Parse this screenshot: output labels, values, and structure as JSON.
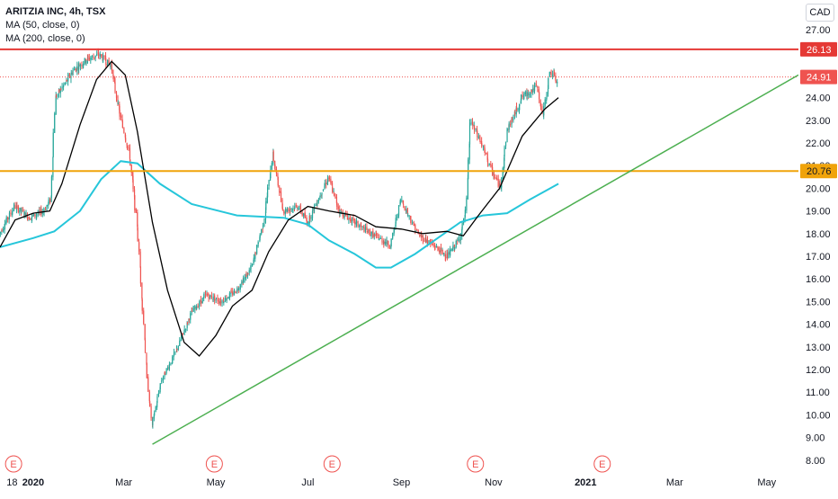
{
  "legend": {
    "title": "ARITZIA INC, 4h, TSX",
    "indicators": [
      "MA (50, close, 0)",
      "MA (200, close, 0)"
    ]
  },
  "currency_label": "CAD",
  "colors": {
    "up": "#26a69a",
    "down": "#ef5350",
    "ma50": "#000000",
    "ma200": "#26c6da",
    "resistance": "#e53935",
    "support": "#f0a30a",
    "trendline": "#4caf50",
    "axis_text": "#131722"
  },
  "chart_data": {
    "type": "candlestick",
    "symbol": "ARITZIA INC",
    "interval": "4h",
    "exchange": "TSX",
    "currency": "CAD",
    "y_ticks": [
      "27.00",
      "26.00",
      "25.00",
      "24.00",
      "23.00",
      "22.00",
      "21.00",
      "20.00",
      "19.00",
      "18.00",
      "17.00",
      "16.00",
      "15.00",
      "14.00",
      "13.00",
      "12.00",
      "11.00",
      "10.00",
      "9.00",
      "8.00"
    ],
    "ylim": [
      7.6,
      27.9
    ],
    "x_ticks": [
      {
        "label": "18",
        "date": "2019-12-18"
      },
      {
        "label": "2020",
        "date": "2020-01-01",
        "bold": true
      },
      {
        "label": "Mar",
        "date": "2020-03-01"
      },
      {
        "label": "May",
        "date": "2020-05-01"
      },
      {
        "label": "Jul",
        "date": "2020-07-01"
      },
      {
        "label": "Sep",
        "date": "2020-09-01"
      },
      {
        "label": "Nov",
        "date": "2020-11-01"
      },
      {
        "label": "2021",
        "date": "2021-01-01",
        "bold": true
      },
      {
        "label": "Mar",
        "date": "2021-03-01"
      },
      {
        "label": "May",
        "date": "2021-05-01"
      }
    ],
    "xlim": [
      "2019-12-10",
      "2021-05-22"
    ],
    "price_path": [
      [
        "2019-12-10",
        18.0
      ],
      [
        "2019-12-20",
        19.2
      ],
      [
        "2019-12-30",
        18.7
      ],
      [
        "2020-01-08",
        19.0
      ],
      [
        "2020-01-13",
        19.5
      ],
      [
        "2020-01-16",
        24.0
      ],
      [
        "2020-01-28",
        25.2
      ],
      [
        "2020-02-06",
        25.7
      ],
      [
        "2020-02-14",
        25.9
      ],
      [
        "2020-02-22",
        25.4
      ],
      [
        "2020-02-27",
        23.5
      ],
      [
        "2020-03-05",
        21.5
      ],
      [
        "2020-03-10",
        18.5
      ],
      [
        "2020-03-13",
        15.5
      ],
      [
        "2020-03-17",
        11.5
      ],
      [
        "2020-03-20",
        9.5
      ],
      [
        "2020-03-26",
        11.5
      ],
      [
        "2020-04-03",
        12.5
      ],
      [
        "2020-04-15",
        14.5
      ],
      [
        "2020-04-25",
        15.3
      ],
      [
        "2020-05-05",
        15.0
      ],
      [
        "2020-05-15",
        15.5
      ],
      [
        "2020-05-25",
        16.5
      ],
      [
        "2020-06-02",
        18.5
      ],
      [
        "2020-06-08",
        21.5
      ],
      [
        "2020-06-15",
        19.0
      ],
      [
        "2020-06-25",
        19.2
      ],
      [
        "2020-07-01",
        18.5
      ],
      [
        "2020-07-08",
        19.5
      ],
      [
        "2020-07-15",
        20.5
      ],
      [
        "2020-07-22",
        19.0
      ],
      [
        "2020-08-01",
        18.5
      ],
      [
        "2020-08-12",
        18.0
      ],
      [
        "2020-08-25",
        17.5
      ],
      [
        "2020-09-01",
        19.5
      ],
      [
        "2020-09-12",
        18.0
      ],
      [
        "2020-09-22",
        17.5
      ],
      [
        "2020-10-02",
        17.0
      ],
      [
        "2020-10-10",
        17.8
      ],
      [
        "2020-10-14",
        19.0
      ],
      [
        "2020-10-17",
        23.0
      ],
      [
        "2020-10-24",
        22.0
      ],
      [
        "2020-10-31",
        20.8
      ],
      [
        "2020-11-06",
        20.0
      ],
      [
        "2020-11-10",
        22.5
      ],
      [
        "2020-11-20",
        24.0
      ],
      [
        "2020-11-30",
        24.5
      ],
      [
        "2020-12-04",
        23.2
      ],
      [
        "2020-12-09",
        25.2
      ],
      [
        "2020-12-14",
        24.6
      ]
    ],
    "ma50": [
      [
        "2019-12-10",
        17.4
      ],
      [
        "2019-12-20",
        18.6
      ],
      [
        "2020-01-01",
        18.9
      ],
      [
        "2020-01-12",
        19.0
      ],
      [
        "2020-01-20",
        20.2
      ],
      [
        "2020-02-01",
        22.8
      ],
      [
        "2020-02-12",
        24.8
      ],
      [
        "2020-02-22",
        25.6
      ],
      [
        "2020-03-02",
        25.0
      ],
      [
        "2020-03-10",
        22.5
      ],
      [
        "2020-03-20",
        18.5
      ],
      [
        "2020-03-30",
        15.5
      ],
      [
        "2020-04-10",
        13.2
      ],
      [
        "2020-04-20",
        12.6
      ],
      [
        "2020-05-01",
        13.5
      ],
      [
        "2020-05-12",
        14.8
      ],
      [
        "2020-05-25",
        15.5
      ],
      [
        "2020-06-05",
        17.2
      ],
      [
        "2020-06-18",
        18.6
      ],
      [
        "2020-07-01",
        19.2
      ],
      [
        "2020-07-15",
        19.0
      ],
      [
        "2020-08-01",
        18.8
      ],
      [
        "2020-08-15",
        18.3
      ],
      [
        "2020-09-01",
        18.2
      ],
      [
        "2020-09-15",
        18.0
      ],
      [
        "2020-10-01",
        18.1
      ],
      [
        "2020-10-12",
        17.9
      ],
      [
        "2020-10-22",
        18.8
      ],
      [
        "2020-11-05",
        20.0
      ],
      [
        "2020-11-20",
        22.3
      ],
      [
        "2020-12-05",
        23.5
      ],
      [
        "2020-12-14",
        24.0
      ]
    ],
    "ma200": [
      [
        "2019-12-10",
        17.4
      ],
      [
        "2020-01-01",
        17.8
      ],
      [
        "2020-01-15",
        18.1
      ],
      [
        "2020-02-01",
        19.0
      ],
      [
        "2020-02-15",
        20.4
      ],
      [
        "2020-02-28",
        21.2
      ],
      [
        "2020-03-10",
        21.1
      ],
      [
        "2020-03-25",
        20.2
      ],
      [
        "2020-04-15",
        19.3
      ],
      [
        "2020-05-15",
        18.8
      ],
      [
        "2020-06-15",
        18.7
      ],
      [
        "2020-07-01",
        18.4
      ],
      [
        "2020-07-15",
        17.7
      ],
      [
        "2020-08-01",
        17.1
      ],
      [
        "2020-08-15",
        16.5
      ],
      [
        "2020-08-25",
        16.5
      ],
      [
        "2020-09-10",
        17.1
      ],
      [
        "2020-09-25",
        17.8
      ],
      [
        "2020-10-10",
        18.5
      ],
      [
        "2020-10-25",
        18.8
      ],
      [
        "2020-11-10",
        18.9
      ],
      [
        "2020-11-25",
        19.5
      ],
      [
        "2020-12-14",
        20.2
      ]
    ],
    "horizontal_lines": [
      {
        "name": "resistance",
        "value": 26.13,
        "label": "26.13",
        "style": "solid"
      },
      {
        "name": "support",
        "value": 20.76,
        "label": "20.76",
        "style": "solid"
      },
      {
        "name": "last-price",
        "value": 24.91,
        "label": "24.91",
        "style": "dotted"
      }
    ],
    "trendline": {
      "start": [
        "2020-03-20",
        8.7
      ],
      "end": [
        "2021-05-22",
        25.0
      ]
    },
    "earnings_markers": [
      {
        "label": "E",
        "date": "2019-12-19"
      },
      {
        "label": "E",
        "date": "2020-04-30"
      },
      {
        "label": "E",
        "date": "2020-07-17"
      },
      {
        "label": "E",
        "date": "2020-10-20"
      },
      {
        "label": "E",
        "date": "2021-01-12"
      }
    ]
  }
}
